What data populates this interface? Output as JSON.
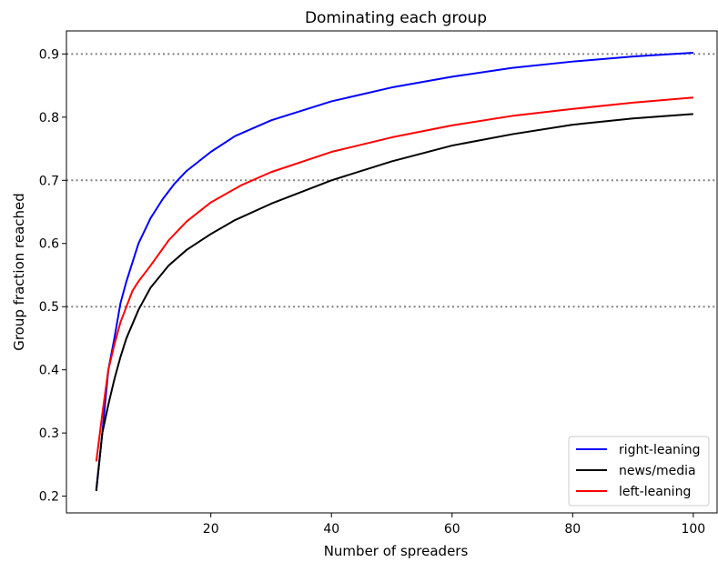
{
  "chart_data": {
    "type": "line",
    "title": "Dominating each group",
    "xlabel": "Number of spreaders",
    "ylabel": "Group fraction reached",
    "xlim": [
      -3.95,
      103.95
    ],
    "ylim": [
      0.1735,
      0.9365
    ],
    "xticks": [
      20,
      40,
      60,
      80,
      100
    ],
    "xtick_labels": [
      "20",
      "40",
      "60",
      "80",
      "100"
    ],
    "yticks": [
      0.2,
      0.3,
      0.4,
      0.5,
      0.6,
      0.7,
      0.8,
      0.9
    ],
    "ytick_labels": [
      "0.2",
      "0.3",
      "0.4",
      "0.5",
      "0.6",
      "0.7",
      "0.8",
      "0.9"
    ],
    "reference_lines": [
      0.5,
      0.7,
      0.9
    ],
    "grid": false,
    "legend_position": "lower-right",
    "series": [
      {
        "name": "right-leaning",
        "color": "#0000ff",
        "x": [
          1,
          2,
          3,
          4,
          5,
          6,
          8,
          10,
          12,
          14,
          16,
          20,
          24,
          30,
          40,
          50,
          60,
          70,
          80,
          90,
          100
        ],
        "y": [
          0.21,
          0.3,
          0.4,
          0.45,
          0.505,
          0.54,
          0.6,
          0.64,
          0.67,
          0.695,
          0.715,
          0.745,
          0.77,
          0.795,
          0.825,
          0.847,
          0.864,
          0.878,
          0.888,
          0.896,
          0.902
        ]
      },
      {
        "name": "news/media",
        "color": "#000000",
        "x": [
          1,
          2,
          3,
          4,
          5,
          6,
          8,
          10,
          13,
          16,
          20,
          24,
          30,
          40,
          50,
          60,
          70,
          80,
          90,
          100
        ],
        "y": [
          0.208,
          0.3,
          0.345,
          0.385,
          0.42,
          0.45,
          0.495,
          0.53,
          0.565,
          0.59,
          0.615,
          0.637,
          0.663,
          0.7,
          0.73,
          0.755,
          0.773,
          0.788,
          0.798,
          0.805
        ]
      },
      {
        "name": "left-leaning",
        "color": "#ff0000",
        "x": [
          1,
          2,
          3,
          4,
          5,
          6,
          7,
          8,
          10,
          13,
          16,
          20,
          25,
          30,
          40,
          50,
          60,
          70,
          80,
          90,
          100
        ],
        "y": [
          0.255,
          0.33,
          0.4,
          0.44,
          0.475,
          0.5,
          0.525,
          0.54,
          0.565,
          0.605,
          0.635,
          0.665,
          0.692,
          0.713,
          0.745,
          0.768,
          0.787,
          0.802,
          0.813,
          0.823,
          0.831
        ]
      }
    ]
  }
}
